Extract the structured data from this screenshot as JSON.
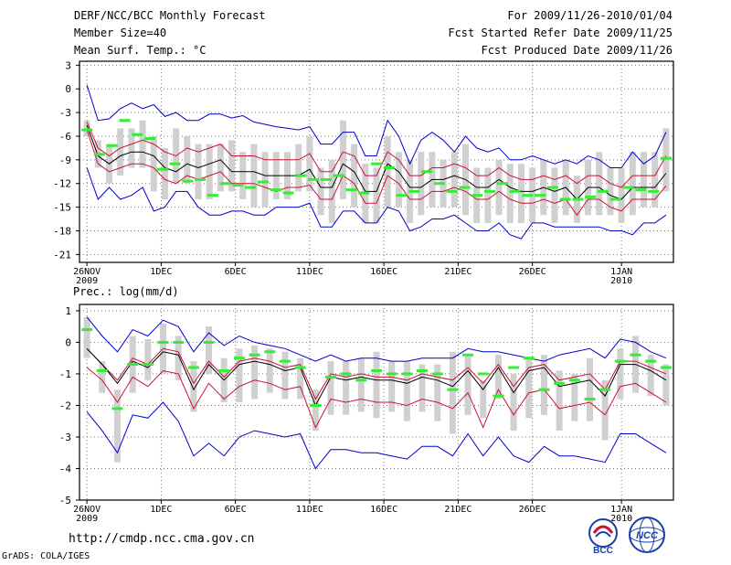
{
  "header": {
    "title": "DERF/NCC/BCC Monthly Forecast",
    "member_size": "Member Size=40",
    "variable1": "Mean Surf. Temp.: °C",
    "period": "For 2009/11/26-2010/01/04",
    "started": "Fcst Started Refer Date 2009/11/25",
    "produced": "Fcst Produced Date 2009/11/26"
  },
  "footer": {
    "url": "http://cmdp.ncc.cma.gov.cn",
    "grads": "GrADS: COLA/IGES",
    "logo_left": "BCC",
    "logo_right": "NCC"
  },
  "colors": {
    "mean": "#000000",
    "band": "#cc1133",
    "extreme": "#0000cc",
    "box": "#d0d0d0",
    "obs": "#33ee33"
  },
  "chart_data": [
    {
      "type": "line",
      "title": "Mean Surf. Temp.: °C",
      "ylim": [
        -22,
        3.5
      ],
      "yticks": [
        3,
        0,
        -3,
        -6,
        -9,
        -12,
        -15,
        -18,
        -21
      ],
      "xlim": [
        0.5,
        40.5
      ],
      "xticks": [
        {
          "day": 1,
          "label": "26NOV",
          "sub": "2009"
        },
        {
          "day": 6,
          "label": "1DEC",
          "sub": ""
        },
        {
          "day": 11,
          "label": "6DEC",
          "sub": ""
        },
        {
          "day": 16,
          "label": "11DEC",
          "sub": ""
        },
        {
          "day": 21,
          "label": "16DEC",
          "sub": ""
        },
        {
          "day": 26,
          "label": "21DEC",
          "sub": ""
        },
        {
          "day": 31,
          "label": "26DEC",
          "sub": ""
        },
        {
          "day": 37,
          "label": "1JAN",
          "sub": "2010"
        }
      ],
      "series": [
        {
          "name": "max",
          "values": [
            0.5,
            -4,
            -3.8,
            -2.5,
            -1.8,
            -2.5,
            -2,
            -3.5,
            -3,
            -4,
            -4,
            -3.2,
            -3.2,
            -3.7,
            -3.4,
            -4.2,
            -4.5,
            -4.8,
            -5,
            -5.2,
            -4.8,
            -7,
            -7,
            -5.5,
            -5.5,
            -8.5,
            -8.5,
            -4,
            -6,
            -9.5,
            -6.5,
            -5.5,
            -6.5,
            -8,
            -6,
            -7.5,
            -8,
            -7.5,
            -9,
            -9,
            -8.5,
            -9,
            -9.5,
            -9,
            -9.5,
            -8.5,
            -9,
            -10,
            -10,
            -8,
            -9.5,
            -8.5,
            -5.5
          ]
        },
        {
          "name": "upper",
          "values": [
            -4.2,
            -7.5,
            -8.5,
            -7.5,
            -7,
            -6.5,
            -7,
            -8,
            -8.5,
            -7.5,
            -8,
            -7.5,
            -7,
            -8.5,
            -8.5,
            -8.5,
            -9,
            -9,
            -9,
            -9,
            -8.2,
            -10.5,
            -10.5,
            -8,
            -8.5,
            -11,
            -11,
            -8,
            -9,
            -11,
            -11,
            -10,
            -10,
            -9.5,
            -10,
            -11,
            -11,
            -10,
            -11,
            -11.5,
            -11.5,
            -11,
            -11.5,
            -11,
            -12,
            -11,
            -11,
            -12,
            -12.5,
            -11,
            -11,
            -11,
            -8.5
          ]
        },
        {
          "name": "mean",
          "values": [
            -4.6,
            -8.5,
            -9.5,
            -8.5,
            -8,
            -8,
            -8.5,
            -10,
            -10.5,
            -9.5,
            -10,
            -9.5,
            -9,
            -10.5,
            -10.5,
            -10.5,
            -11,
            -11,
            -11,
            -11,
            -10.2,
            -12.5,
            -12.5,
            -9.5,
            -10.5,
            -13,
            -13,
            -9.5,
            -10.5,
            -12.5,
            -12.5,
            -11.5,
            -11.5,
            -11,
            -11.5,
            -12.5,
            -12.5,
            -11.5,
            -12.5,
            -13,
            -13,
            -12.5,
            -13,
            -12.5,
            -14,
            -12.5,
            -12.5,
            -13.5,
            -14,
            -12.5,
            -12.5,
            -12.5,
            -10.7
          ]
        },
        {
          "name": "lower",
          "values": [
            -5.2,
            -9.5,
            -10.5,
            -10,
            -9.5,
            -9.5,
            -10,
            -11.5,
            -12,
            -11,
            -11.5,
            -11,
            -10.5,
            -12,
            -12,
            -12,
            -12.5,
            -13,
            -12.5,
            -12.5,
            -12.2,
            -14,
            -14,
            -11,
            -12,
            -14.5,
            -14.5,
            -11,
            -12,
            -14,
            -14,
            -13,
            -13,
            -12.5,
            -13,
            -14,
            -14,
            -13,
            -14,
            -14.5,
            -14.5,
            -14,
            -14.5,
            -14,
            -16,
            -14,
            -14,
            -15,
            -15.5,
            -14,
            -14,
            -14,
            -12.3
          ]
        },
        {
          "name": "min",
          "values": [
            -10,
            -14,
            -12.5,
            -14,
            -13.5,
            -12.5,
            -15.5,
            -15,
            -13,
            -13,
            -15,
            -16,
            -16,
            -15.5,
            -15.5,
            -16,
            -16,
            -15,
            -15,
            -15,
            -14.5,
            -17.5,
            -17.5,
            -15.5,
            -15.5,
            -17,
            -17,
            -15,
            -15.5,
            -18,
            -17.5,
            -16.5,
            -16.5,
            -16,
            -17,
            -18,
            -18,
            -17,
            -18.5,
            -19,
            -17,
            -17,
            -17.5,
            -17.5,
            -17.5,
            -17.5,
            -17.5,
            -18,
            -18,
            -18.5,
            -17,
            -17,
            -16
          ]
        },
        {
          "name": "box_top",
          "values": [
            -4,
            -6.5,
            -7,
            -5,
            -5,
            -4,
            -6,
            -7.5,
            -5,
            -6,
            -7,
            -7,
            -7,
            -6.5,
            -8,
            -7,
            -8,
            -8,
            -8,
            -7,
            -6,
            -10,
            -9,
            -4,
            -7,
            -9.5,
            -10,
            -6,
            -8,
            -9,
            -8,
            -8,
            -9,
            -8,
            -7,
            -10,
            -10,
            -9,
            -9.5,
            -9.5,
            -10,
            -9,
            -10,
            -9,
            -11,
            -9,
            -8,
            -10,
            -10,
            -8,
            -8,
            -8,
            -5
          ]
        },
        {
          "name": "box_bottom",
          "values": [
            -6,
            -10,
            -12,
            -11,
            -10,
            -10,
            -13,
            -14,
            -12,
            -12,
            -14,
            -14,
            -13,
            -13,
            -14,
            -15,
            -15,
            -14,
            -14,
            -13,
            -13,
            -16,
            -17,
            -14,
            -15,
            -17,
            -17,
            -15,
            -15,
            -17,
            -16,
            -15,
            -15,
            -15,
            -16,
            -17,
            -17,
            -16,
            -17,
            -17,
            -17,
            -16,
            -17,
            -16,
            -17,
            -16,
            -16,
            -16,
            -17,
            -16,
            -15,
            -15,
            -13
          ]
        },
        {
          "name": "obs",
          "values": [
            -5.2,
            -8.3,
            -7.2,
            -4,
            -5.8,
            -6.3,
            -10.2,
            -9.5,
            -11.7,
            -11.5,
            -13.5,
            -12,
            -12.2,
            -12.5,
            -11.8,
            -12.8,
            -13.2,
            -11,
            -11.5,
            -11.5,
            -11,
            -12.8,
            -13.2,
            -9.5,
            -10,
            -13.5,
            -13,
            -10.5,
            -12,
            -13,
            -12.5,
            -13.5,
            -13,
            -12,
            -13,
            -13.5,
            -13.5,
            -12.5,
            -14,
            -14,
            -13.7,
            -13,
            -14,
            -12.5,
            -12.8,
            -13,
            -8.8
          ]
        }
      ]
    },
    {
      "type": "line",
      "title": "Prec.: log(mm/d)",
      "ylim": [
        -5,
        1.2
      ],
      "yticks": [
        1,
        0,
        -1,
        -2,
        -3,
        -4,
        -5
      ],
      "xlim": [
        0.5,
        40.5
      ],
      "xticks": [
        {
          "day": 1,
          "label": "26NOV",
          "sub": "2009"
        },
        {
          "day": 6,
          "label": "1DEC",
          "sub": ""
        },
        {
          "day": 11,
          "label": "6DEC",
          "sub": ""
        },
        {
          "day": 16,
          "label": "11DEC",
          "sub": ""
        },
        {
          "day": 21,
          "label": "16DEC",
          "sub": ""
        },
        {
          "day": 26,
          "label": "21DEC",
          "sub": ""
        },
        {
          "day": 31,
          "label": "26DEC",
          "sub": ""
        },
        {
          "day": 37,
          "label": "1JAN",
          "sub": "2010"
        }
      ],
      "series": [
        {
          "name": "max",
          "values": [
            0.8,
            0.2,
            -0.3,
            0.4,
            0.2,
            0.7,
            0.5,
            -0.3,
            0.3,
            -0.1,
            0.2,
            0,
            -0.1,
            -0.2,
            -0.4,
            -0.6,
            -0.4,
            -0.6,
            -0.5,
            -0.5,
            -0.6,
            -0.6,
            -0.5,
            -0.5,
            -0.5,
            -0.2,
            -0.3,
            -0.3,
            -0.4,
            -0.5,
            -0.6,
            -0.4,
            -0.3,
            -0.2,
            -0.5,
            0.1,
            0,
            -0.3,
            -0.5
          ]
        },
        {
          "name": "upper",
          "values": [
            -0.2,
            -0.7,
            -1.2,
            -0.5,
            -0.7,
            -0.2,
            -0.3,
            -1.3,
            -0.6,
            -1.1,
            -0.6,
            -0.5,
            -0.6,
            -0.8,
            -0.7,
            -1.8,
            -1,
            -1.1,
            -1,
            -1.1,
            -1.1,
            -1.2,
            -1,
            -1.1,
            -1.2,
            -0.8,
            -1.3,
            -0.7,
            -1.4,
            -0.8,
            -0.7,
            -1.2,
            -1.1,
            -1,
            -1.5,
            -0.6,
            -0.6,
            -0.8,
            -1
          ]
        },
        {
          "name": "mean",
          "values": [
            -0.2,
            -0.7,
            -1.3,
            -0.6,
            -0.8,
            -0.3,
            -0.4,
            -1.5,
            -0.7,
            -1.2,
            -0.7,
            -0.6,
            -0.7,
            -0.9,
            -0.8,
            -2,
            -1.1,
            -1.2,
            -1.1,
            -1.2,
            -1.2,
            -1.3,
            -1.1,
            -1.2,
            -1.4,
            -0.9,
            -1.5,
            -0.8,
            -1.6,
            -0.9,
            -0.8,
            -1.4,
            -1.3,
            -1.2,
            -1.7,
            -0.7,
            -0.7,
            -0.9,
            -1.2
          ]
        },
        {
          "name": "lower",
          "values": [
            -0.8,
            -1.2,
            -1.9,
            -1.1,
            -1.4,
            -0.9,
            -1,
            -2.1,
            -1.3,
            -1.8,
            -1.4,
            -1.2,
            -1.3,
            -1.5,
            -1.4,
            -2.7,
            -1.8,
            -1.9,
            -1.8,
            -1.9,
            -1.9,
            -2,
            -1.8,
            -1.9,
            -2.1,
            -1.6,
            -2.7,
            -1.5,
            -2.3,
            -1.6,
            -1.5,
            -2.1,
            -2,
            -1.9,
            -2.3,
            -1.4,
            -1.3,
            -1.6,
            -1.9
          ]
        },
        {
          "name": "min",
          "values": [
            -2.2,
            -2.8,
            -3.5,
            -2.3,
            -2.4,
            -1.9,
            -2.5,
            -3.6,
            -3.2,
            -3.6,
            -3,
            -2.8,
            -2.9,
            -3,
            -2.9,
            -4,
            -3.4,
            -3.4,
            -3.5,
            -3.5,
            -3.6,
            -3.7,
            -3.3,
            -3.3,
            -3.6,
            -2.9,
            -3.6,
            -3,
            -3.6,
            -3.8,
            -3.3,
            -3.6,
            -3.6,
            -3.7,
            -3.8,
            -2.9,
            -2.9,
            -3.2,
            -3.5
          ]
        },
        {
          "name": "box_top",
          "values": [
            0.8,
            -0.6,
            -1.5,
            0.2,
            0.1,
            0.6,
            0.2,
            -0.6,
            0.5,
            -0.5,
            -0.2,
            -0.1,
            -0.2,
            -0.3,
            -0.5,
            -1.5,
            -0.6,
            -0.6,
            -0.5,
            -0.3,
            -0.6,
            -0.6,
            -0.7,
            -0.7,
            -0.3,
            -0.4,
            -1.2,
            -0.4,
            -1,
            -0.5,
            -0.4,
            -0.9,
            -1,
            -0.5,
            -1.2,
            -0.2,
            0.2,
            -0.4,
            -0.7
          ]
        },
        {
          "name": "box_bottom",
          "values": [
            -0.5,
            -1.6,
            -3.8,
            -1.6,
            -1.2,
            -1,
            -1.2,
            -2.2,
            -1,
            -1.9,
            -1.9,
            -1.8,
            -1.6,
            -1.8,
            -1.8,
            -2.8,
            -2.3,
            -2.3,
            -2.2,
            -2.4,
            -2.2,
            -2.5,
            -2.2,
            -2.5,
            -2.9,
            -2.3,
            -2.4,
            -1.8,
            -2.8,
            -2.4,
            -2.3,
            -2.8,
            -2.5,
            -2.5,
            -3.1,
            -1.8,
            -1.6,
            -1.7,
            -2
          ]
        },
        {
          "name": "obs",
          "values": [
            0.4,
            -0.9,
            -2.1,
            -0.7,
            -0.7,
            0,
            0,
            -0.8,
            0,
            -0.9,
            -0.5,
            -0.4,
            -0.3,
            -0.6,
            -0.8,
            -2,
            -1.1,
            -1,
            -1.2,
            -0.9,
            -1,
            -1,
            -0.9,
            -1,
            -1.5,
            -0.4,
            -1,
            -1.7,
            -0.8,
            -0.5,
            -1.5,
            -1.3,
            -1.2,
            -1.8,
            -1.5,
            -0.6,
            -0.4,
            -0.6,
            -0.8
          ]
        }
      ]
    }
  ]
}
